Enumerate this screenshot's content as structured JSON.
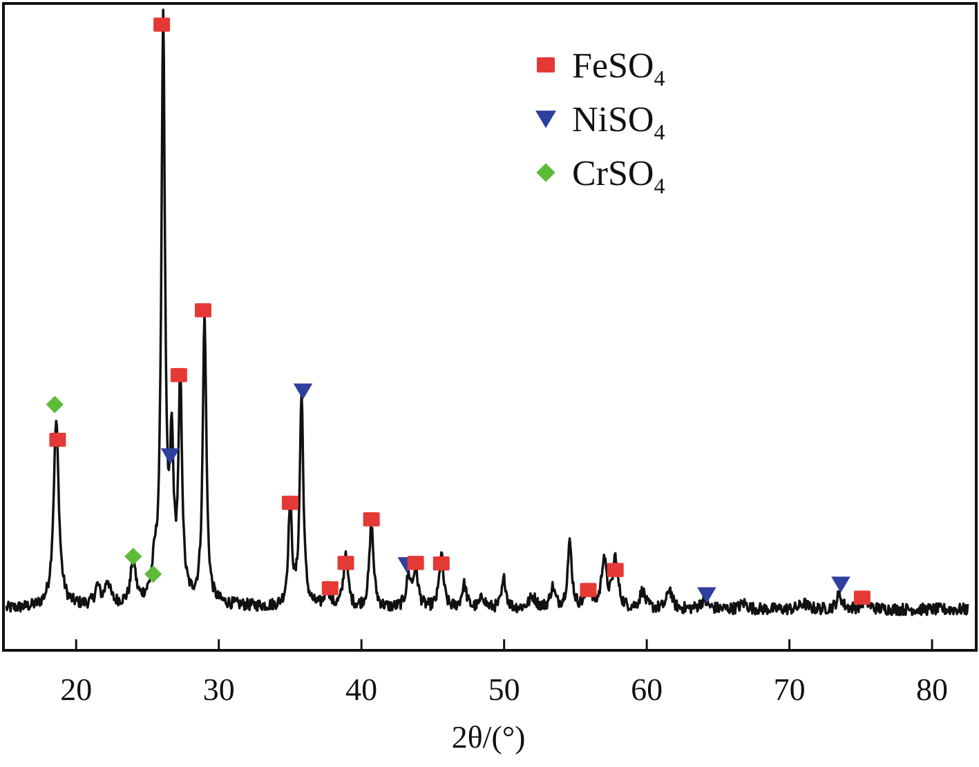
{
  "chart_data": {
    "type": "line",
    "title": "",
    "xlabel": "2θ/(°)",
    "ylabel": "",
    "xlim": [
      15,
      83
    ],
    "ylim": [
      0,
      100
    ],
    "grid": false,
    "xticks": [
      20,
      30,
      40,
      50,
      60,
      70,
      80
    ],
    "xtick_labels": [
      "20",
      "30",
      "40",
      "50",
      "60",
      "70",
      "80"
    ],
    "legend_position": "top-right",
    "legend": [
      {
        "key": "fe",
        "formula": "FeSO",
        "subscript": "4",
        "color": "#e53935",
        "marker": "square"
      },
      {
        "key": "ni",
        "formula": "NiSO",
        "subscript": "4",
        "color": "#2f3f9e",
        "marker": "triangle-down"
      },
      {
        "key": "cr",
        "formula": "CrSO",
        "subscript": "4",
        "color": "#5dbb3a",
        "marker": "diamond"
      }
    ],
    "baseline": 1.2,
    "peaks": [
      {
        "x": 18.6,
        "height": 31.5,
        "width": 0.22
      },
      {
        "x": 21.5,
        "height": 3.0,
        "width": 0.2
      },
      {
        "x": 22.2,
        "height": 4.0,
        "width": 0.2
      },
      {
        "x": 24.0,
        "height": 8.0,
        "width": 0.18
      },
      {
        "x": 25.5,
        "height": 4.5,
        "width": 0.2
      },
      {
        "x": 26.1,
        "height": 99.0,
        "width": 0.15
      },
      {
        "x": 26.7,
        "height": 24.0,
        "width": 0.15
      },
      {
        "x": 27.3,
        "height": 36.5,
        "width": 0.15
      },
      {
        "x": 29.0,
        "height": 49.0,
        "width": 0.15
      },
      {
        "x": 35.0,
        "height": 17.5,
        "width": 0.15
      },
      {
        "x": 35.8,
        "height": 36.0,
        "width": 0.15
      },
      {
        "x": 37.6,
        "height": 3.5,
        "width": 0.2
      },
      {
        "x": 38.9,
        "height": 9.5,
        "width": 0.18
      },
      {
        "x": 40.7,
        "height": 14.0,
        "width": 0.18
      },
      {
        "x": 43.3,
        "height": 5.0,
        "width": 0.2
      },
      {
        "x": 43.8,
        "height": 6.5,
        "width": 0.2
      },
      {
        "x": 45.6,
        "height": 9.0,
        "width": 0.18
      },
      {
        "x": 47.2,
        "height": 4.0,
        "width": 0.2
      },
      {
        "x": 48.5,
        "height": 2.0,
        "width": 0.2
      },
      {
        "x": 50.0,
        "height": 5.0,
        "width": 0.18
      },
      {
        "x": 52.0,
        "height": 2.0,
        "width": 0.3
      },
      {
        "x": 53.4,
        "height": 3.5,
        "width": 0.2
      },
      {
        "x": 54.6,
        "height": 11.0,
        "width": 0.18
      },
      {
        "x": 55.9,
        "height": 4.0,
        "width": 0.2
      },
      {
        "x": 57.0,
        "height": 8.5,
        "width": 0.2
      },
      {
        "x": 57.8,
        "height": 8.5,
        "width": 0.22
      },
      {
        "x": 59.7,
        "height": 3.0,
        "width": 0.22
      },
      {
        "x": 61.6,
        "height": 3.5,
        "width": 0.2
      },
      {
        "x": 64.0,
        "height": 1.5,
        "width": 0.3
      },
      {
        "x": 66.8,
        "height": 1.0,
        "width": 0.3
      },
      {
        "x": 71.0,
        "height": 1.0,
        "width": 0.3
      },
      {
        "x": 73.5,
        "height": 2.5,
        "width": 0.22
      },
      {
        "x": 75.3,
        "height": 1.5,
        "width": 0.3
      }
    ],
    "markers": [
      {
        "phase": "cr",
        "x": 18.5,
        "y": 36.0
      },
      {
        "phase": "fe",
        "x": 18.7,
        "y": 30.0
      },
      {
        "phase": "cr",
        "x": 24.0,
        "y": 10.2
      },
      {
        "phase": "cr",
        "x": 25.4,
        "y": 7.2
      },
      {
        "phase": "fe",
        "x": 26.0,
        "y": 100.5
      },
      {
        "phase": "ni",
        "x": 26.6,
        "y": 27.3
      },
      {
        "phase": "fe",
        "x": 27.2,
        "y": 41.0
      },
      {
        "phase": "fe",
        "x": 28.9,
        "y": 52.0
      },
      {
        "phase": "fe",
        "x": 35.0,
        "y": 19.3
      },
      {
        "phase": "ni",
        "x": 35.9,
        "y": 38.3
      },
      {
        "phase": "fe",
        "x": 37.8,
        "y": 4.8
      },
      {
        "phase": "fe",
        "x": 38.9,
        "y": 9.1
      },
      {
        "phase": "fe",
        "x": 40.7,
        "y": 16.5
      },
      {
        "phase": "ni",
        "x": 43.2,
        "y": 8.8
      },
      {
        "phase": "fe",
        "x": 43.8,
        "y": 9.1
      },
      {
        "phase": "fe",
        "x": 45.6,
        "y": 9.0
      },
      {
        "phase": "fe",
        "x": 55.9,
        "y": 4.5
      },
      {
        "phase": "fe",
        "x": 57.8,
        "y": 7.9
      },
      {
        "phase": "ni",
        "x": 64.2,
        "y": 3.7
      },
      {
        "phase": "ni",
        "x": 73.6,
        "y": 5.5
      },
      {
        "phase": "fe",
        "x": 75.1,
        "y": 3.2
      }
    ]
  }
}
